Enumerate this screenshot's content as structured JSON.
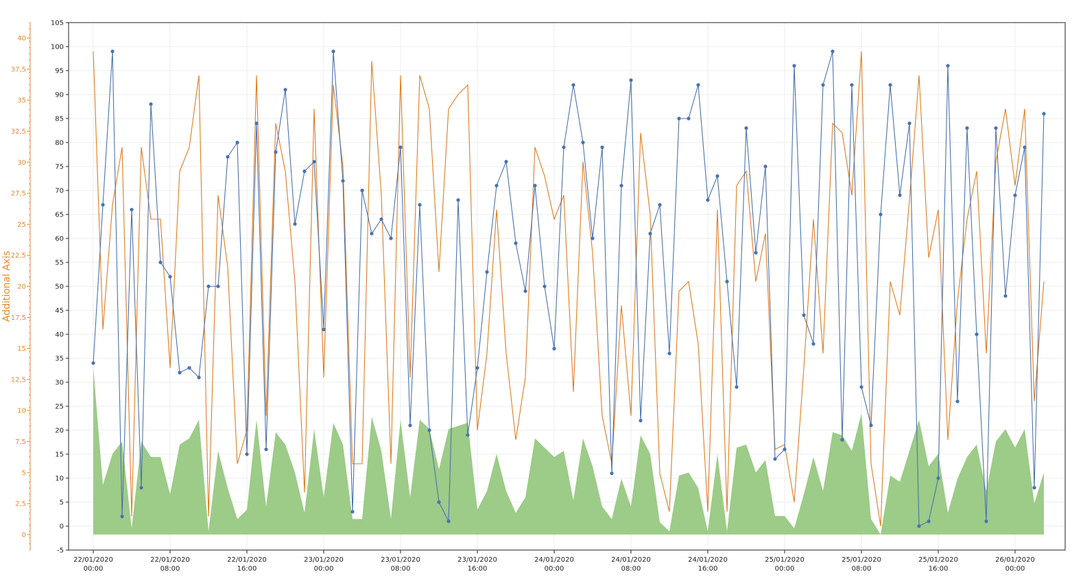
{
  "colors": {
    "series_blue": "#4a72b0",
    "series_orange": "#e07b1f",
    "area_green": "#9dcb88",
    "additional_axis": "#e5892a",
    "grid": "#ececec",
    "frame": "#222222"
  },
  "additional_axis": {
    "title": "Additional Axis",
    "min": -1.25,
    "max": 41.25,
    "ticks": [
      "0",
      "2,5",
      "5",
      "7,5",
      "10",
      "12,5",
      "15",
      "17,5",
      "20",
      "22,5",
      "25",
      "27,5",
      "30",
      "32,5",
      "35",
      "37,5",
      "40"
    ]
  },
  "chart_data": {
    "type": "line",
    "title": "",
    "xlabel": "",
    "ylabel": "",
    "grid": true,
    "legend": "none",
    "ylim": [
      -5,
      105
    ],
    "yticks": [
      "-5",
      "0",
      "5",
      "10",
      "15",
      "20",
      "25",
      "30",
      "35",
      "40",
      "45",
      "50",
      "55",
      "60",
      "65",
      "70",
      "75",
      "80",
      "85",
      "90",
      "95",
      "100",
      "105"
    ],
    "xticks": [
      {
        "date": "22/01/2020",
        "time": "00:00"
      },
      {
        "date": "22/01/2020",
        "time": "08:00"
      },
      {
        "date": "22/01/2020",
        "time": "16:00"
      },
      {
        "date": "23/01/2020",
        "time": "00:00"
      },
      {
        "date": "23/01/2020",
        "time": "08:00"
      },
      {
        "date": "23/01/2020",
        "time": "16:00"
      },
      {
        "date": "24/01/2020",
        "time": "00:00"
      },
      {
        "date": "24/01/2020",
        "time": "08:00"
      },
      {
        "date": "24/01/2020",
        "time": "16:00"
      },
      {
        "date": "25/01/2020",
        "time": "00:00"
      },
      {
        "date": "25/01/2020",
        "time": "08:00"
      },
      {
        "date": "25/01/2020",
        "time": "16:00"
      },
      {
        "date": "26/01/2020",
        "time": "00:00"
      }
    ],
    "x_start": "22/01/2020 00:00",
    "x_step": "1 hour",
    "series": [
      {
        "type": "line-markers",
        "color": "#4a72b0",
        "values": [
          34,
          67,
          99,
          2,
          66,
          8,
          88,
          55,
          52,
          32,
          33,
          31,
          50,
          50,
          77,
          80,
          15,
          84,
          16,
          78,
          91,
          63,
          74,
          76,
          41,
          99,
          72,
          3,
          70,
          61,
          64,
          60,
          79,
          21,
          67,
          20,
          5,
          1,
          68,
          19,
          33,
          53,
          71,
          76,
          59,
          49,
          71,
          50,
          37,
          79,
          92,
          80,
          60,
          79,
          11,
          71,
          93,
          22,
          61,
          67,
          36,
          85,
          85,
          92,
          68,
          73,
          51,
          29,
          83,
          57,
          75,
          14,
          16,
          96,
          44,
          38,
          92,
          99,
          18,
          92,
          29,
          21,
          65,
          92,
          69,
          84,
          0,
          1,
          10,
          96,
          26,
          83,
          40,
          1,
          83,
          48,
          69,
          79,
          8,
          86
        ]
      },
      {
        "type": "line",
        "color": "#e07b1f",
        "y_axis": "primary",
        "values": [
          99,
          41,
          67,
          79,
          2,
          79,
          64,
          64,
          33,
          74,
          79,
          94,
          2,
          69,
          54,
          13,
          20,
          94,
          23,
          84,
          74,
          51,
          7,
          87,
          31,
          92,
          75,
          13,
          13,
          97,
          69,
          13,
          94,
          31,
          94,
          87,
          53,
          87,
          90,
          92,
          20,
          36,
          66,
          36,
          18,
          31,
          79,
          73,
          64,
          69,
          28,
          76,
          57,
          23,
          13,
          46,
          23,
          82,
          65,
          11,
          3,
          49,
          51,
          38,
          3,
          66,
          3,
          71,
          74,
          51,
          61,
          16,
          17,
          5,
          33,
          64,
          36,
          84,
          82,
          69,
          99,
          13,
          0,
          51,
          44,
          68,
          94,
          56,
          66,
          18,
          47,
          64,
          74,
          36,
          76,
          87,
          71,
          87,
          26,
          51
        ]
      },
      {
        "type": "area",
        "color": "#9dcb88",
        "y_axis": "additional",
        "values": [
          13.5,
          4,
          6.5,
          7.5,
          0.5,
          7.5,
          6.25,
          6.25,
          3.25,
          7.25,
          7.75,
          9.25,
          0.25,
          6.75,
          3.75,
          1.25,
          2,
          9.25,
          2.25,
          8.25,
          7.25,
          5,
          1.75,
          8.5,
          3,
          9,
          7.25,
          1.25,
          1.25,
          9.5,
          6.75,
          1.25,
          9.25,
          3,
          9.25,
          8.5,
          5.25,
          8.5,
          8.75,
          9,
          2,
          3.5,
          6.5,
          3.5,
          1.75,
          3,
          7.75,
          7,
          6.25,
          6.75,
          2.75,
          7.75,
          5.5,
          2.25,
          1.25,
          4.5,
          2.25,
          8,
          6.5,
          1,
          0.25,
          4.75,
          5,
          3.75,
          0.25,
          6.5,
          0.25,
          7,
          7.25,
          5,
          6,
          1.5,
          1.5,
          0.5,
          3.25,
          6.25,
          3.5,
          8.25,
          8,
          6.75,
          9.75,
          1.25,
          0,
          4.75,
          4.25,
          6.75,
          9.25,
          5.5,
          6.5,
          1.75,
          4.5,
          6.25,
          7.25,
          3.5,
          7.5,
          8.5,
          7,
          8.5,
          2.5,
          5
        ]
      }
    ]
  }
}
